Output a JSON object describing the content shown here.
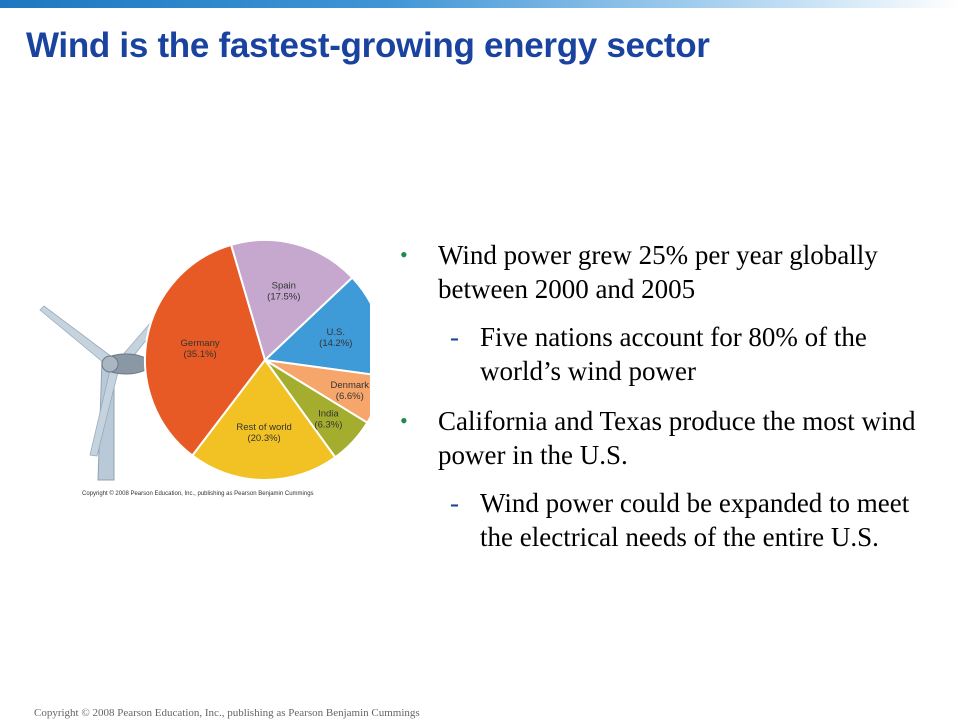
{
  "slide": {
    "title": "Wind is the fastest-growing energy sector",
    "copyright": "Copyright © 2008 Pearson Education, Inc., publishing as Pearson Benjamin Cummings"
  },
  "bullets": [
    {
      "text": "Wind power grew 25% per year globally between 2000 and 2005",
      "sub": "Five nations account for 80% of the world’s wind power"
    },
    {
      "text": "California and Texas produce the most wind power in the U.S.",
      "sub": "Wind power could be expanded to meet the electrical needs of the entire U.S."
    }
  ],
  "chart_data": {
    "type": "pie",
    "title": "",
    "credit": "Copyright © 2008 Pearson Education, Inc., publishing as Pearson Benjamin Cummings",
    "slices": [
      {
        "name": "U.S.",
        "label": "(14.2%)",
        "value": 14.2,
        "color": "#3f9ad8"
      },
      {
        "name": "Denmark",
        "label": "(6.6%)",
        "value": 6.6,
        "color": "#f6a66b"
      },
      {
        "name": "India",
        "label": "(6.3%)",
        "value": 6.3,
        "color": "#a5ad2f"
      },
      {
        "name": "Rest of world",
        "label": "(20.3%)",
        "value": 20.3,
        "color": "#f2c224"
      },
      {
        "name": "Germany",
        "label": "(35.1%)",
        "value": 35.1,
        "color": "#e85a25"
      },
      {
        "name": "Spain",
        "label": "(17.5%)",
        "value": 17.5,
        "color": "#c6a8cf"
      }
    ]
  }
}
